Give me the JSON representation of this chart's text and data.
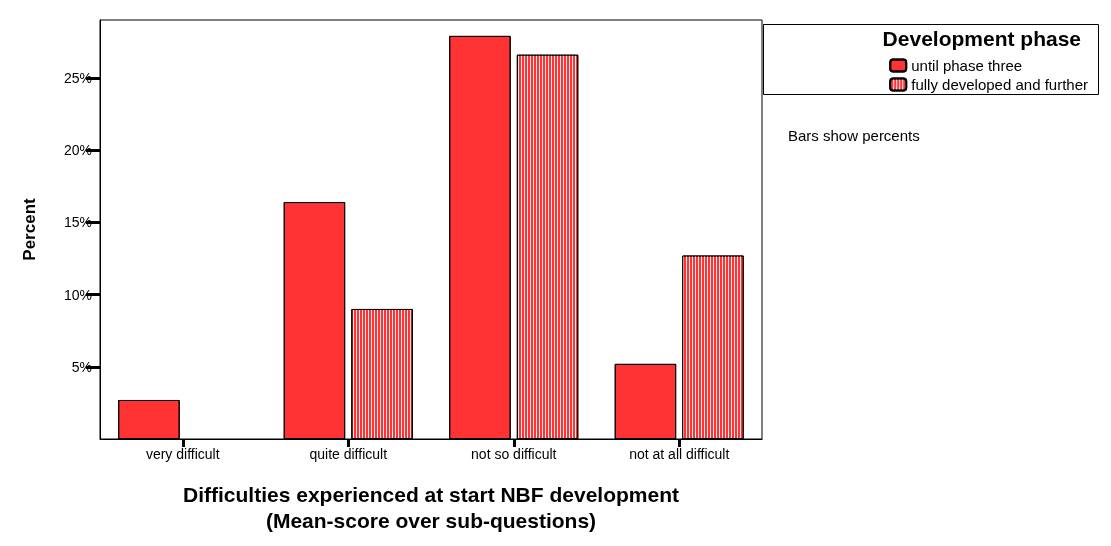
{
  "chart_data": {
    "type": "bar",
    "xlabel": "Difficulties experienced at start NBF development\n(Mean-score over sub-questions)",
    "ylabel": "Percent",
    "legend_title": "Development phase",
    "legend": "top right",
    "grid": false,
    "categories": [
      "very difficult",
      "quite difficult",
      "not so difficult",
      "not at all difficult"
    ],
    "series": [
      {
        "name": "until phase three",
        "color": "#ff3333",
        "values": [
          2.7,
          16.4,
          27.9,
          5.2
        ]
      },
      {
        "name": "fully developed and further",
        "color": "#ff3333",
        "values": [
          null,
          9.0,
          26.6,
          12.7
        ]
      }
    ],
    "ylim": [
      0,
      29
    ],
    "yticks": [
      {
        "value": 5,
        "label": "5%"
      },
      {
        "value": 10,
        "label": "10%"
      },
      {
        "value": 15,
        "label": "15%"
      },
      {
        "value": 20,
        "label": "20%"
      },
      {
        "value": 25,
        "label": "25%"
      }
    ],
    "annotations": [
      "Bars show percents"
    ]
  }
}
